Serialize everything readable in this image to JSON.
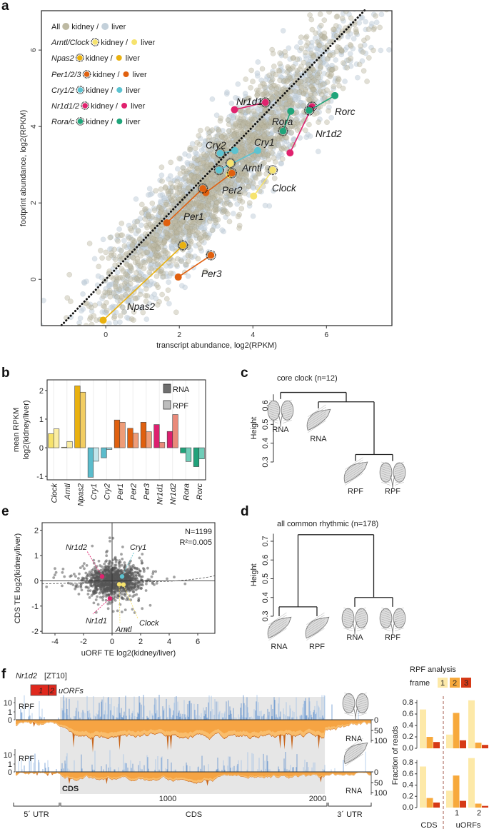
{
  "figure_labels": {
    "a": "a",
    "b": "b",
    "c": "c",
    "d": "d",
    "e": "e",
    "f": "f"
  },
  "chart_data": [
    {
      "panel": "a",
      "type": "scatter",
      "xlabel": "transcript abundance, log2(RPKM)",
      "ylabel": "footprint abundance, log2(RPKM)",
      "xlim": [
        -1.75,
        7.78
      ],
      "ylim": [
        -1.21,
        7.03
      ],
      "xticks": [
        "0",
        "2",
        "4",
        "6"
      ],
      "yticks": [
        "0",
        "2",
        "4",
        "6"
      ],
      "identity_line": true,
      "legend_kidney": "kidney /",
      "legend_liver": "liver",
      "legend": [
        {
          "label": "All",
          "color_kidney": "#bdb9a2",
          "color_liver": "#c3d0da",
          "italic": false
        },
        {
          "label": "Arntl/Clock",
          "color": "#f6e36e",
          "italic": true
        },
        {
          "label": "Npas2",
          "color": "#e9b10f",
          "italic": true
        },
        {
          "label": "Per1/2/3",
          "color": "#e0600f",
          "italic": true
        },
        {
          "label": "Cry1/2",
          "color": "#5cc3d1",
          "italic": true
        },
        {
          "label": "Nr1d1/2",
          "color": "#e0226e",
          "italic": true
        },
        {
          "label": "Rora/c",
          "color": "#1fa57a",
          "italic": true
        }
      ],
      "genes": [
        {
          "name": "Nr1d1",
          "color": "#e0226e",
          "kidney": [
            4.34,
            4.63
          ],
          "liver": [
            3.5,
            4.44
          ]
        },
        {
          "name": "Nr1d2",
          "color": "#e0226e",
          "kidney": [
            5.61,
            4.52
          ],
          "liver": [
            5.01,
            3.31
          ]
        },
        {
          "name": "Rorc",
          "color": "#1fa57a",
          "kidney": [
            5.53,
            4.42
          ],
          "liver": [
            6.23,
            4.81
          ]
        },
        {
          "name": "Rora",
          "color": "#1fa57a",
          "kidney": [
            4.82,
            3.88
          ],
          "liver": [
            5.03,
            4.4
          ]
        },
        {
          "name": "Cry2",
          "color": "#5cc3d1",
          "kidney": [
            3.11,
            3.3
          ],
          "liver": [
            3.51,
            3.37
          ]
        },
        {
          "name": "Cry1",
          "color": "#5cc3d1",
          "kidney": [
            3.08,
            2.86
          ],
          "liver": [
            4.13,
            3.37
          ]
        },
        {
          "name": "Arntl",
          "color": "#f6e36e",
          "kidney": [
            3.39,
            3.04
          ],
          "liver": [
            3.36,
            2.74
          ]
        },
        {
          "name": "Per2",
          "color": "#e0600f",
          "kidney": [
            3.43,
            2.78
          ],
          "liver": [
            2.72,
            2.27
          ]
        },
        {
          "name": "Clock",
          "color": "#f6e36e",
          "kidney": [
            4.54,
            2.86
          ],
          "liver": [
            4.02,
            2.18
          ]
        },
        {
          "name": "Per1",
          "color": "#e0600f",
          "kidney": [
            2.64,
            2.38
          ],
          "liver": [
            1.66,
            1.48
          ]
        },
        {
          "name": "Per3",
          "color": "#e0600f",
          "kidney": [
            2.86,
            0.63
          ],
          "liver": [
            1.97,
            0.06
          ]
        },
        {
          "name": "Npas2",
          "color": "#e9b10f",
          "kidney": [
            2.1,
            0.89
          ],
          "liver": [
            -0.07,
            -1.07
          ]
        }
      ]
    },
    {
      "panel": "b",
      "type": "bar",
      "ylabel_line1": "mean RPKM",
      "ylabel_line2": "log2(kidney/liver)",
      "ylim": [
        -1.12,
        2.37
      ],
      "yticks": [
        "-1",
        "0",
        "1",
        "2"
      ],
      "categories": [
        "Clock",
        "Arntl",
        "Npas2",
        "Cry1",
        "Cry2",
        "Per1",
        "Per2",
        "Per3",
        "Nr1d1",
        "Nr1d2",
        "Rora",
        "Rorc"
      ],
      "series": [
        {
          "name": "RNA",
          "legend_color": "#6f6f6f",
          "values": [
            0.49,
            0.02,
            2.16,
            -1.03,
            -0.35,
            0.97,
            0.68,
            0.89,
            0.81,
            0.57,
            -0.18,
            -0.66
          ],
          "colors": [
            "#f7e36b",
            "#f7e36b",
            "#e9b10f",
            "#5bbccc",
            "#5bbccc",
            "#e0600f",
            "#e0600f",
            "#e0600f",
            "#dd1f6f",
            "#dd1f6f",
            "#20a27a",
            "#20a27a"
          ]
        },
        {
          "name": "RPF",
          "legend_color": "#bdbdbd",
          "values": [
            0.66,
            0.22,
            1.94,
            -0.47,
            -0.06,
            0.89,
            0.51,
            0.56,
            0.19,
            1.16,
            -0.48,
            -0.39
          ],
          "colors": [
            "#fbeea3",
            "#fbeea3",
            "#f2cd62",
            "#c0e5eb",
            "#9ad6df",
            "#ee9c78",
            "#ee9c78",
            "#ee9c78",
            "#ea8a7a",
            "#ea8a7a",
            "#6fcdb8",
            "#6fcdb8"
          ]
        }
      ]
    },
    {
      "panel": "c",
      "type": "dendrogram",
      "title": "core clock (n=12)",
      "ylabel": "Height",
      "ylim": [
        0.3,
        0.66
      ],
      "yticks": [
        "0.3",
        "0.4",
        "0.5",
        "0.6"
      ],
      "leaves": [
        {
          "label": "RNA",
          "tissue": "kidney",
          "color": "#4e5c7c"
        },
        {
          "label": "RNA",
          "tissue": "liver",
          "color": "#e8322a"
        },
        {
          "label": "RPF",
          "tissue": "liver",
          "color": "#f5962a"
        },
        {
          "label": "RPF",
          "tissue": "kidney",
          "color": "#8ed4e4"
        }
      ],
      "merges": [
        {
          "a": "L2",
          "b": "L3",
          "height": 0.34
        },
        {
          "a": "L1",
          "b": "M0",
          "height": 0.62
        },
        {
          "a": "L0",
          "b": "M1",
          "height": 0.67
        }
      ]
    },
    {
      "panel": "d",
      "type": "dendrogram",
      "title": "all common rhythmic (n=178)",
      "ylabel": "Height",
      "ylim": [
        0.3,
        0.74
      ],
      "yticks": [
        "0.3",
        "0.4",
        "0.5",
        "0.6",
        "0.7"
      ],
      "leaves": [
        {
          "label": "RNA",
          "tissue": "liver",
          "color": "#e8322a"
        },
        {
          "label": "RPF",
          "tissue": "liver",
          "color": "#f5962a"
        },
        {
          "label": "RNA",
          "tissue": "kidney",
          "color": "#4e5c7c"
        },
        {
          "label": "RPF",
          "tissue": "kidney",
          "color": "#8ed4e4"
        }
      ],
      "merges": [
        {
          "a": "L0",
          "b": "L1",
          "height": 0.35
        },
        {
          "a": "L2",
          "b": "L3",
          "height": 0.4
        },
        {
          "a": "M0",
          "b": "M1",
          "height": 0.735
        }
      ]
    },
    {
      "panel": "e",
      "type": "scatter",
      "xlabel": "uORF TE log2(kidney/liver)",
      "ylabel": "CDS TE log2(kidney/liver)",
      "xlim": [
        -4.9,
        7.2
      ],
      "ylim": [
        -2.08,
        2.3
      ],
      "xticks": [
        "-4",
        "-2",
        "0",
        "2",
        "4",
        "6"
      ],
      "yticks": [
        "-2",
        "-1",
        "0",
        "1",
        "2"
      ],
      "n_label": "N=1199",
      "r2_label": "R²=0.005",
      "highlighted": [
        {
          "name": "Nr1d2",
          "color": "#e0226e",
          "x": -0.7,
          "y": 0.17
        },
        {
          "name": "Cry1",
          "color": "#5cc3d1",
          "x": 0.7,
          "y": 0.17
        },
        {
          "name": "Arntl",
          "color": "#f6e36e",
          "x": 0.5,
          "y": -0.14
        },
        {
          "name": "Clock",
          "color": "#f6e36e",
          "x": 0.8,
          "y": -0.15
        },
        {
          "name": "Nr1d1",
          "color": "#e0226e",
          "x": -0.15,
          "y": -0.7
        }
      ]
    },
    {
      "panel": "f",
      "type": "area",
      "gene": "Nr1d2",
      "timepoint": "[ZT10]",
      "uorf_label": "uORFs",
      "uorf_numbers": [
        "1",
        "2"
      ],
      "uorf_color": "#e0281d",
      "rpf_label": "RPF",
      "rna_label": "RNA",
      "rpf_color": "#4f86c9",
      "rna_color": "#f6a443",
      "rpf_yticks": [
        "0",
        "1",
        "10"
      ],
      "rna_yticks": [
        "0",
        "50",
        "100"
      ],
      "xticks": [
        "1000",
        "2000"
      ],
      "cds_start": 281,
      "cds_end": 2048,
      "cds_shade_label": "CDS",
      "regions": [
        "5´ UTR",
        "CDS",
        "3´ UTR"
      ],
      "tracks": [
        {
          "tissue": "kidney"
        },
        {
          "tissue": "liver"
        }
      ]
    },
    {
      "panel": "f-right",
      "type": "bar",
      "title": "RPF analysis",
      "frame_label": "frame",
      "frames": [
        {
          "label": "1",
          "color": "#fde9a8"
        },
        {
          "label": "2",
          "color": "#f7a93c"
        },
        {
          "label": "3",
          "color": "#d63a17"
        }
      ],
      "ylabel": "Fraction of reads",
      "ylim": [
        0,
        0.85
      ],
      "yticks": [
        "0.0",
        "0.2",
        "0.4",
        "0.6",
        "0.8"
      ],
      "categories": [
        "CDS",
        "1",
        "2"
      ],
      "group_label": "uORFs",
      "panels": [
        {
          "tissue": "kidney",
          "values": [
            [
              0.68,
              0.2,
              0.11
            ],
            [
              0.24,
              0.62,
              0.14
            ],
            [
              0.84,
              0.1,
              0.06
            ]
          ]
        },
        {
          "tissue": "liver",
          "values": [
            [
              0.73,
              0.17,
              0.09
            ],
            [
              0.3,
              0.57,
              0.12
            ],
            [
              0.88,
              0.07,
              0.03
            ]
          ]
        }
      ]
    }
  ]
}
